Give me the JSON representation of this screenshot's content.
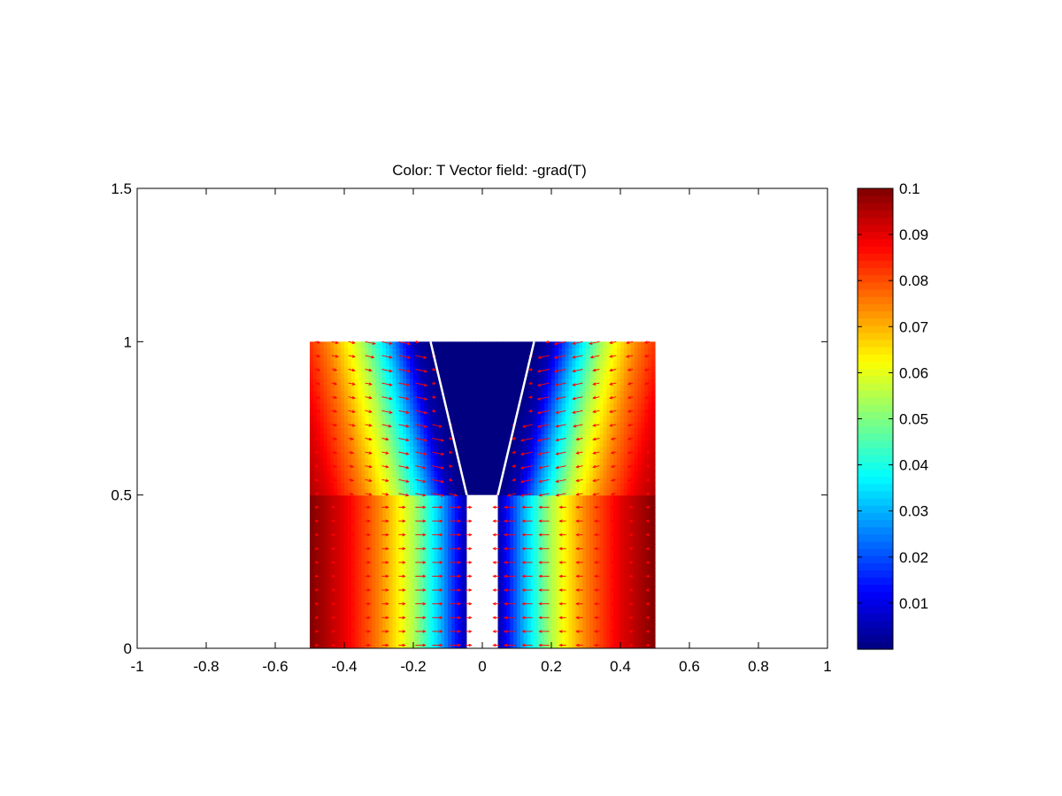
{
  "chart_data": {
    "type": "heatmap",
    "title": "Color: T  Vector field: -grad(T)",
    "xlabel": "",
    "ylabel": "",
    "xlim": [
      -1,
      1
    ],
    "ylim": [
      0,
      1.5
    ],
    "xticks": [
      -1,
      -0.8,
      -0.6,
      -0.4,
      -0.2,
      0,
      0.2,
      0.4,
      0.6,
      0.8,
      1
    ],
    "yticks": [
      0,
      0.5,
      1,
      1.5
    ],
    "xtick_labels": [
      "-1",
      "-0.8",
      "-0.6",
      "-0.4",
      "-0.2",
      "0",
      "0.2",
      "0.4",
      "0.6",
      "0.8",
      "1"
    ],
    "ytick_labels": [
      "0",
      "0.5",
      "1",
      "1.5"
    ],
    "colorbar": {
      "colormap": "jet",
      "range": [
        0,
        0.1
      ],
      "ticks": [
        0.01,
        0.02,
        0.03,
        0.04,
        0.05,
        0.06,
        0.07,
        0.08,
        0.09,
        0.1
      ],
      "tick_labels": [
        "0.01",
        "0.02",
        "0.03",
        "0.04",
        "0.05",
        "0.06",
        "0.07",
        "0.08",
        "0.09",
        "0.1"
      ]
    },
    "domain": {
      "x_range": [
        -0.5,
        0.5
      ],
      "y_range": [
        0,
        1
      ],
      "slit": {
        "x_range": [
          -0.045,
          0.045
        ],
        "y_range": [
          0,
          0.5
        ]
      },
      "notch_boundary": [
        {
          "points": [
            [
              -0.045,
              0.5
            ],
            [
              -0.15,
              1
            ]
          ]
        },
        {
          "points": [
            [
              0.045,
              0.5
            ],
            [
              0.15,
              1
            ]
          ]
        }
      ]
    },
    "field": {
      "quantity": "T",
      "profile_x": [
        0,
        0.05,
        0.12,
        0.2,
        0.3,
        0.4,
        0.5
      ],
      "profile_T": [
        0.0,
        0.005,
        0.03,
        0.055,
        0.075,
        0.09,
        0.1
      ],
      "vectors": "-grad(T)",
      "arrow_color": "#ff0000",
      "boundary_color": "#ffffff"
    }
  }
}
